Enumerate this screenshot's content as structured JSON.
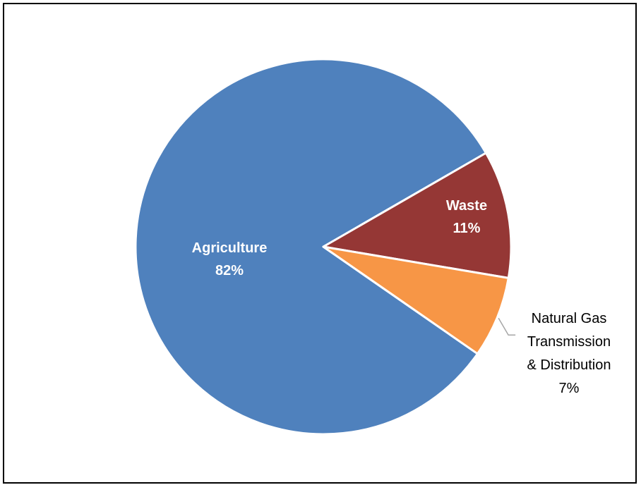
{
  "chart_data": {
    "type": "pie",
    "categories": [
      "Agriculture",
      "Waste",
      "Natural Gas Transmission & Distribution"
    ],
    "values": [
      82,
      11,
      7
    ],
    "slices": [
      {
        "name": "Agriculture",
        "label_lines": [
          "Agriculture",
          "82%"
        ],
        "color": "#4F81BD",
        "label_style": "inside-white-bold"
      },
      {
        "name": "Waste",
        "label_lines": [
          "Waste",
          "11%"
        ],
        "color": "#953735",
        "label_style": "inside-white-bold"
      },
      {
        "name": "Natural Gas Transmission & Distribution",
        "label_lines": [
          "Natural Gas",
          "Transmission",
          "& Distribution",
          "7%"
        ],
        "color": "#F79646",
        "label_style": "outside-black-leader"
      }
    ],
    "title": "",
    "legend": "none",
    "start_direction": "clockwise-from-upper-right"
  }
}
